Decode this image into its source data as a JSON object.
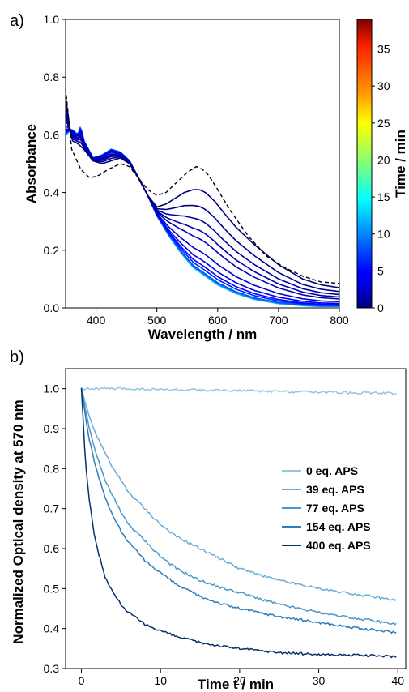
{
  "chart_data": [
    {
      "type": "line",
      "panel_label": "a)",
      "xlabel": "Wavelength / nm",
      "ylabel": "Absorbance",
      "xlim": [
        350,
        800
      ],
      "ylim": [
        0.0,
        1.0
      ],
      "xticks": [
        400,
        500,
        600,
        700,
        800
      ],
      "yticks": [
        0.0,
        0.2,
        0.4,
        0.6,
        0.8,
        1.0
      ],
      "colorbar": {
        "label": "Time / min",
        "range": [
          0,
          39
        ],
        "ticks": [
          0,
          5,
          10,
          15,
          20,
          25,
          30,
          35
        ],
        "colormap": "jet"
      },
      "dashed_reference": {
        "x": [
          350,
          360,
          375,
          390,
          405,
          420,
          440,
          455,
          470,
          485,
          500,
          515,
          530,
          550,
          565,
          575,
          585,
          600,
          620,
          650,
          680,
          710,
          740,
          770,
          800
        ],
        "y": [
          0.76,
          0.55,
          0.48,
          0.45,
          0.46,
          0.48,
          0.5,
          0.49,
          0.45,
          0.41,
          0.39,
          0.4,
          0.43,
          0.47,
          0.49,
          0.48,
          0.46,
          0.41,
          0.34,
          0.25,
          0.18,
          0.14,
          0.11,
          0.09,
          0.085
        ]
      },
      "spectra_minutes": [
        0,
        0.5,
        1,
        1.5,
        2,
        3,
        4,
        5,
        6,
        8,
        10,
        12,
        14,
        16,
        18,
        20,
        22,
        24,
        26,
        28,
        30,
        32,
        34,
        36,
        38,
        39
      ],
      "spectrum_final": {
        "x": [
          350,
          360,
          370,
          375,
          380,
          395,
          410,
          425,
          440,
          455,
          470,
          485,
          500,
          520,
          540,
          560,
          580,
          600,
          630,
          660,
          700,
          740,
          770,
          800
        ],
        "y": [
          0.6,
          0.62,
          0.6,
          0.63,
          0.58,
          0.52,
          0.53,
          0.55,
          0.54,
          0.51,
          0.45,
          0.39,
          0.32,
          0.25,
          0.19,
          0.14,
          0.11,
          0.08,
          0.05,
          0.03,
          0.015,
          0.008,
          0.005,
          0.005
        ]
      },
      "spectrum_initial_solid": {
        "x": [
          350,
          360,
          370,
          380,
          395,
          410,
          425,
          440,
          455,
          470,
          485,
          500,
          515,
          530,
          545,
          560,
          570,
          580,
          595,
          610,
          630,
          660,
          700,
          740,
          770,
          800
        ],
        "y": [
          0.73,
          0.58,
          0.57,
          0.55,
          0.51,
          0.5,
          0.51,
          0.52,
          0.5,
          0.45,
          0.39,
          0.35,
          0.36,
          0.38,
          0.4,
          0.41,
          0.41,
          0.4,
          0.37,
          0.33,
          0.28,
          0.22,
          0.15,
          0.1,
          0.08,
          0.07
        ]
      }
    },
    {
      "type": "line",
      "panel_label": "b)",
      "xlabel": "Time t / min",
      "ylabel": "Normalized Optical density at 570 nm",
      "xlim": [
        -2,
        41
      ],
      "ylim": [
        0.3,
        1.05
      ],
      "xticks": [
        0,
        10,
        20,
        30,
        40
      ],
      "yticks": [
        0.3,
        0.4,
        0.5,
        0.6,
        0.7,
        0.8,
        0.9,
        1.0
      ],
      "legend_position": "center-right",
      "series": [
        {
          "name": "0 eq. APS",
          "color": "#94c4df",
          "x": [
            0,
            5,
            10,
            15,
            20,
            25,
            30,
            35,
            40
          ],
          "y": [
            1.0,
            1.0,
            0.998,
            0.996,
            0.995,
            0.993,
            0.992,
            0.99,
            0.988
          ]
        },
        {
          "name": "39 eq. APS",
          "color": "#6aaed6",
          "x": [
            0,
            1,
            2,
            3,
            4,
            5,
            6,
            8,
            10,
            12,
            15,
            18,
            20,
            25,
            30,
            35,
            40
          ],
          "y": [
            1.0,
            0.93,
            0.88,
            0.84,
            0.8,
            0.77,
            0.74,
            0.7,
            0.66,
            0.63,
            0.6,
            0.57,
            0.55,
            0.52,
            0.5,
            0.485,
            0.47
          ]
        },
        {
          "name": "77 eq. APS",
          "color": "#4a98c9",
          "x": [
            0,
            1,
            2,
            3,
            4,
            5,
            6,
            8,
            10,
            12,
            15,
            18,
            20,
            25,
            30,
            35,
            40
          ],
          "y": [
            1.0,
            0.9,
            0.83,
            0.77,
            0.73,
            0.69,
            0.66,
            0.62,
            0.58,
            0.55,
            0.52,
            0.5,
            0.49,
            0.46,
            0.44,
            0.425,
            0.41
          ]
        },
        {
          "name": "154 eq. APS",
          "color": "#2e7ebc",
          "x": [
            0,
            1,
            2,
            3,
            4,
            5,
            6,
            8,
            10,
            12,
            15,
            18,
            20,
            25,
            30,
            35,
            40
          ],
          "y": [
            1.0,
            0.87,
            0.79,
            0.73,
            0.68,
            0.645,
            0.615,
            0.57,
            0.54,
            0.51,
            0.48,
            0.46,
            0.45,
            0.43,
            0.415,
            0.4,
            0.39
          ]
        },
        {
          "name": "400 eq. APS",
          "color": "#08306b",
          "x": [
            0,
            0.5,
            1,
            1.5,
            2,
            3,
            4,
            5,
            6,
            7,
            8,
            10,
            12,
            15,
            18,
            20,
            25,
            30,
            35,
            40
          ],
          "y": [
            1.0,
            0.82,
            0.72,
            0.65,
            0.6,
            0.53,
            0.49,
            0.46,
            0.44,
            0.425,
            0.41,
            0.395,
            0.38,
            0.365,
            0.355,
            0.35,
            0.34,
            0.335,
            0.333,
            0.33
          ]
        }
      ]
    }
  ]
}
